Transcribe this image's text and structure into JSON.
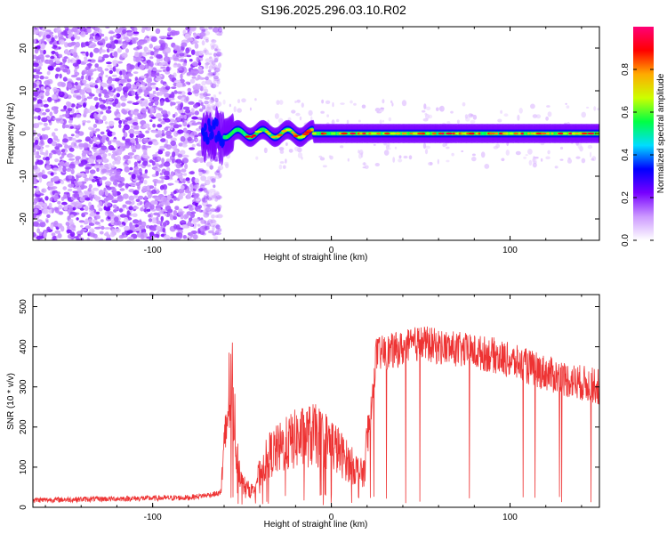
{
  "chart_data": [
    {
      "type": "heatmap",
      "title": "S196.2025.296.03.10.R02",
      "xlabel": "Height of straight line (km)",
      "ylabel": "Frequency (Hz)",
      "xlim": [
        -167,
        150
      ],
      "ylim": [
        -25,
        25
      ],
      "x_ticks": [
        -100,
        0,
        100
      ],
      "y_ticks": [
        -20,
        -10,
        0,
        10,
        20
      ],
      "colorbar": {
        "label": "Normalized spectral amplitude",
        "range": [
          0,
          1
        ],
        "ticks": [
          0.0,
          0.2,
          0.4,
          0.6,
          0.8
        ],
        "tick_labels": [
          "0.0",
          "0.2",
          "0.4",
          "0.6",
          "0.8"
        ],
        "stops": [
          "#ffffff",
          "#cc99ff",
          "#7700ff",
          "#0000ff",
          "#00ddff",
          "#00ff44",
          "#ccff00",
          "#ffaa00",
          "#ff0000",
          "#ff0077"
        ]
      },
      "noise_region_x": [
        -167,
        -68
      ],
      "signal_start_x": -72,
      "signal_center_freq_hz": 0,
      "signal_band_hz": 1.5
    },
    {
      "type": "line",
      "xlabel": "Height of straight line (km)",
      "ylabel": "SNR (10 * v/v)",
      "xlim": [
        -167,
        150
      ],
      "ylim": [
        0,
        530
      ],
      "x_ticks": [
        -100,
        0,
        100
      ],
      "y_ticks": [
        0,
        100,
        200,
        300,
        400,
        500
      ],
      "line_color": "#ee3333",
      "series": [
        {
          "name": "SNR",
          "x": [
            -167,
            -140,
            -110,
            -80,
            -62,
            -56,
            -53,
            -50,
            -45,
            -35,
            -20,
            -10,
            0,
            10,
            18,
            22,
            25,
            40,
            50,
            60,
            75,
            90,
            110,
            130,
            150
          ],
          "values": [
            18,
            20,
            22,
            24,
            35,
            340,
            140,
            60,
            40,
            130,
            170,
            180,
            160,
            110,
            80,
            240,
            380,
            395,
            410,
            400,
            390,
            380,
            350,
            320,
            300
          ]
        }
      ]
    }
  ]
}
